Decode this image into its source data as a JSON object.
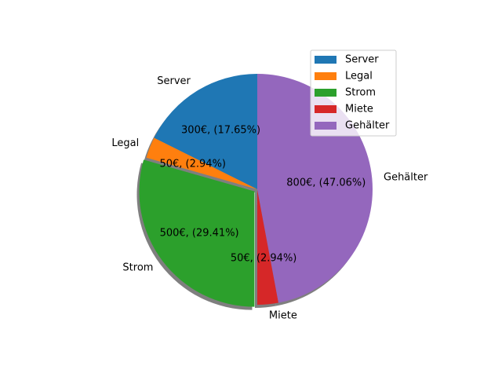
{
  "chart_data": {
    "type": "pie",
    "categories": [
      "Server",
      "Legal",
      "Strom",
      "Miete",
      "Gehälter"
    ],
    "values": [
      300,
      50,
      500,
      50,
      800
    ],
    "slice_labels": [
      "300€, (17.65%)",
      "50€, (2.94%)",
      "500€, (29.41%)",
      "50€, (2.94%)",
      "800€, (47.06%)"
    ],
    "colors": [
      "#1f77b4",
      "#ff7f0e",
      "#2ca02c",
      "#d62728",
      "#9467bd"
    ],
    "start_angle_deg": 90,
    "direction": "counterclockwise",
    "shadow": true,
    "legend": {
      "entries": [
        "Server",
        "Legal",
        "Strom",
        "Miete",
        "Gehälter"
      ],
      "placement": "top-right"
    }
  }
}
